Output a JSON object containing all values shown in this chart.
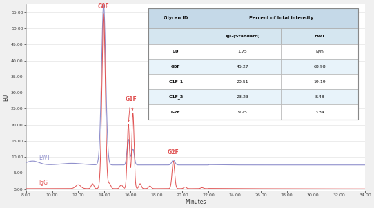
{
  "xlabel": "Minutes",
  "ylabel": "EU",
  "xlim": [
    8.0,
    34.0
  ],
  "ylim": [
    -0.5,
    57.5
  ],
  "yticks": [
    0.0,
    5.0,
    10.0,
    15.0,
    20.0,
    25.0,
    30.0,
    35.0,
    40.0,
    45.0,
    50.0,
    55.0
  ],
  "ytick_labels": [
    "0.00",
    "5.00",
    "10.00",
    "15.00",
    "20.00",
    "25.00",
    "30.00",
    "35.00",
    "40.00",
    "45.00",
    "50.00",
    "55.00"
  ],
  "xticks": [
    8.0,
    10.0,
    12.0,
    14.0,
    16.0,
    18.0,
    20.0,
    22.0,
    24.0,
    26.0,
    28.0,
    30.0,
    32.0,
    34.0
  ],
  "xtick_labels": [
    "8.00",
    "10.00",
    "12.00",
    "14.00",
    "16.00",
    "18.00",
    "20.00",
    "22.00",
    "24.00",
    "26.00",
    "28.00",
    "30.00",
    "32.00",
    "34.00"
  ],
  "ewt_baseline": 7.5,
  "igg_baseline": 0.15,
  "ewt_color": "#9090cc",
  "igg_color": "#e05050",
  "annotation_color": "#e05050",
  "bg_color": "#ffffff",
  "fig_bg_color": "#f0f0f0",
  "table_header_bg": "#c5d9e8",
  "table_subheader_bg": "#d5e6f0",
  "table_row_bg_alt": "#e8f3fa",
  "table_row_bg_white": "#ffffff",
  "table_glycan_ids": [
    "G0",
    "G0F",
    "G1F_1",
    "G1F_2",
    "G2F"
  ],
  "table_igg_vals": [
    "1.75",
    "45.27",
    "20.51",
    "23.23",
    "9.25"
  ],
  "table_ewt_vals": [
    "N/D",
    "68.98",
    "19.19",
    "8.48",
    "3.34"
  ],
  "label_ewt": "EWT",
  "label_igg": "IgG"
}
